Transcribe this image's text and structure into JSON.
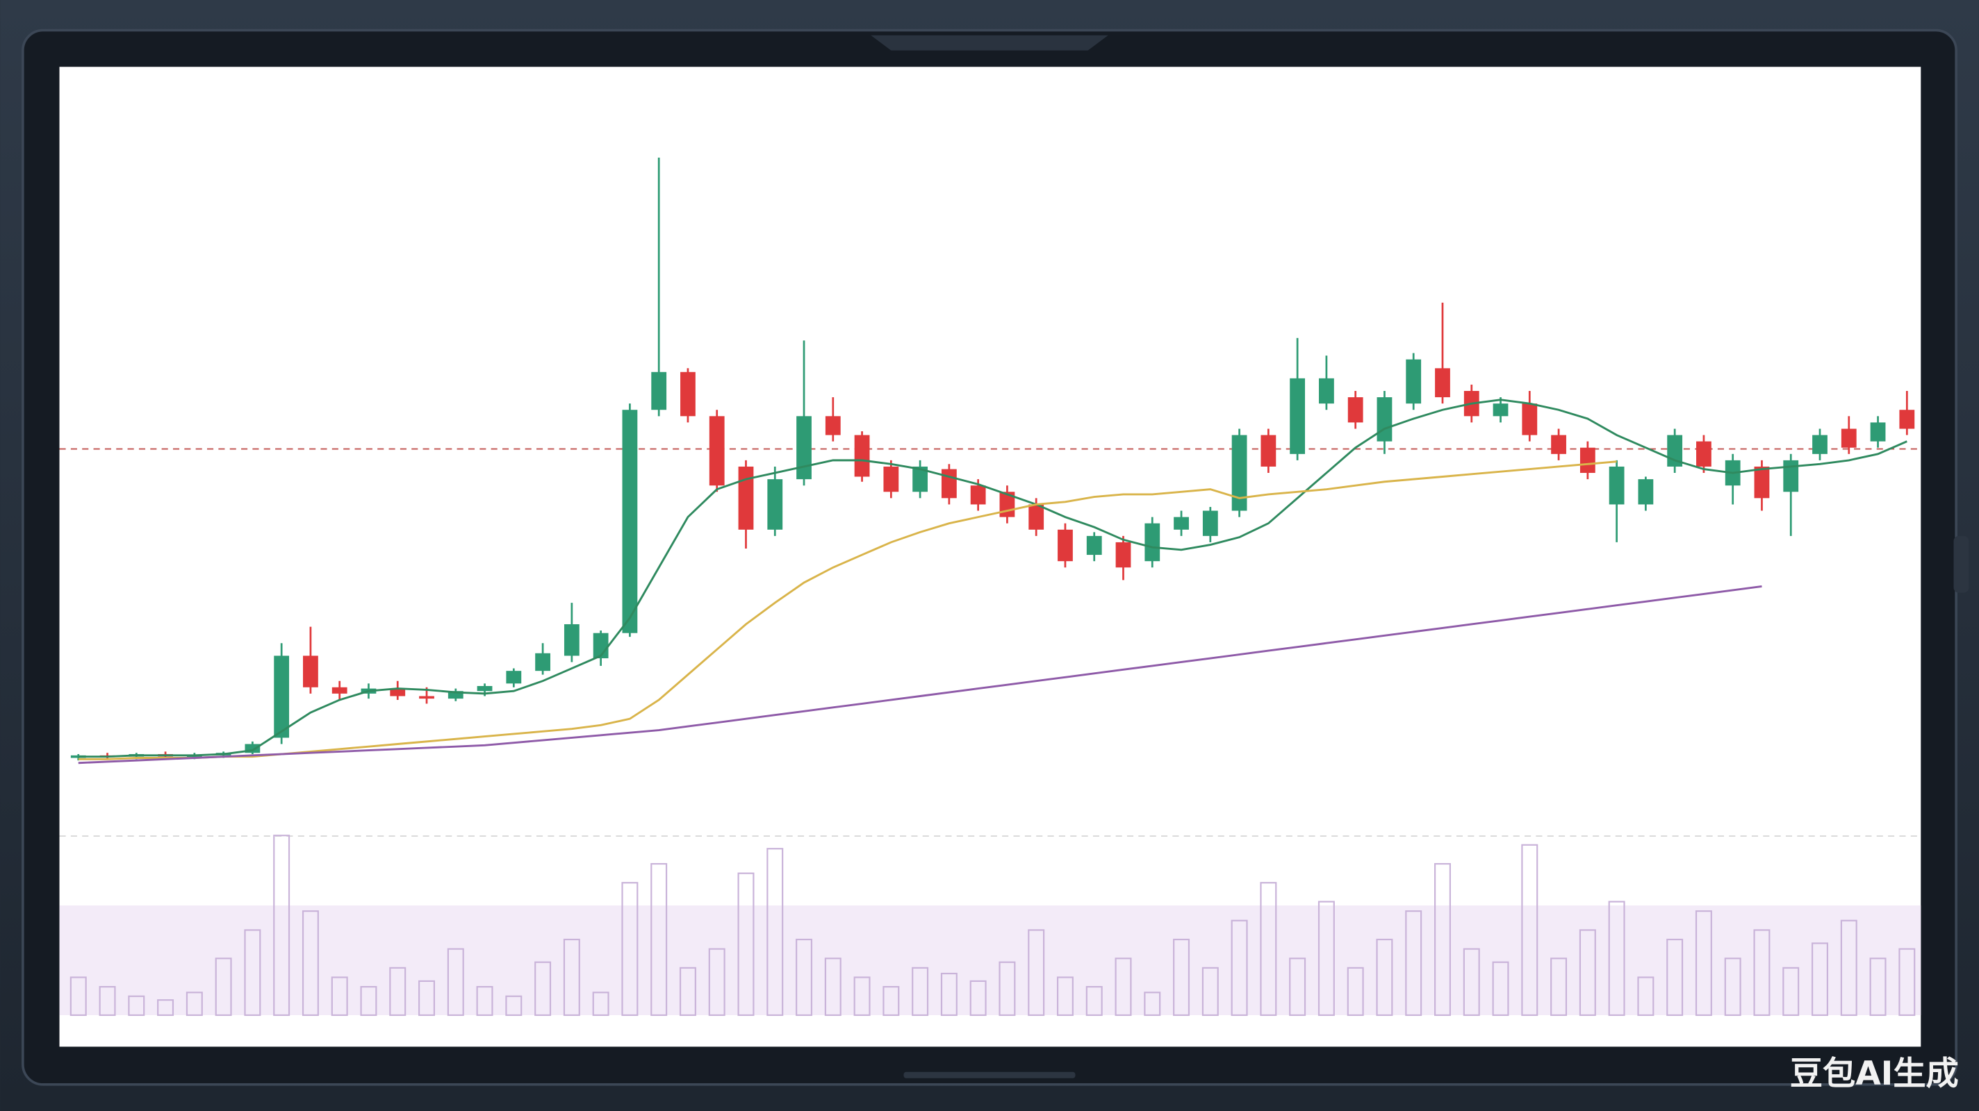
{
  "chart_data": {
    "type": "candlestick",
    "ylim": [
      0,
      600
    ],
    "up_color": "#2e9b74",
    "down_color": "#e0393b",
    "open": [
      49,
      51,
      50,
      52,
      50,
      51,
      53,
      65,
      130,
      105,
      100,
      104,
      98,
      96,
      102,
      108,
      118,
      130,
      128,
      148,
      325,
      355,
      320,
      280,
      230,
      270,
      320,
      305,
      280,
      260,
      278,
      265,
      260,
      250,
      230,
      210,
      220,
      205,
      230,
      225,
      245,
      305,
      290,
      330,
      335,
      300,
      330,
      358,
      340,
      320,
      330,
      305,
      295,
      250,
      250,
      280,
      300,
      265,
      280,
      260,
      290,
      310,
      300,
      325
    ],
    "high": [
      52,
      53,
      53,
      54,
      53,
      54,
      62,
      140,
      153,
      110,
      108,
      110,
      105,
      104,
      108,
      120,
      140,
      172,
      150,
      330,
      525,
      358,
      325,
      285,
      280,
      380,
      335,
      308,
      285,
      285,
      282,
      270,
      265,
      255,
      235,
      228,
      225,
      240,
      245,
      248,
      310,
      310,
      382,
      368,
      340,
      340,
      370,
      410,
      345,
      335,
      340,
      310,
      300,
      285,
      272,
      310,
      305,
      290,
      285,
      290,
      310,
      320,
      320,
      340
    ],
    "low": [
      47,
      48,
      48,
      49,
      48,
      49,
      52,
      60,
      100,
      95,
      96,
      95,
      92,
      94,
      98,
      105,
      115,
      125,
      122,
      145,
      320,
      315,
      260,
      215,
      225,
      265,
      300,
      268,
      255,
      255,
      250,
      245,
      235,
      225,
      200,
      205,
      190,
      200,
      225,
      220,
      240,
      275,
      285,
      325,
      310,
      290,
      325,
      330,
      315,
      315,
      300,
      285,
      270,
      220,
      245,
      275,
      275,
      250,
      245,
      225,
      285,
      290,
      295,
      305
    ],
    "close": [
      51,
      50,
      52,
      50,
      51,
      53,
      60,
      130,
      105,
      100,
      104,
      98,
      96,
      102,
      106,
      118,
      132,
      155,
      148,
      325,
      355,
      320,
      265,
      230,
      270,
      320,
      305,
      272,
      260,
      280,
      255,
      250,
      240,
      230,
      205,
      225,
      200,
      235,
      240,
      245,
      305,
      280,
      350,
      350,
      315,
      335,
      365,
      335,
      320,
      330,
      305,
      290,
      275,
      280,
      270,
      305,
      280,
      285,
      255,
      285,
      305,
      295,
      315,
      310
    ],
    "moving_averages": [
      {
        "color": "#2f8a5f",
        "values": [
          50,
          50,
          51,
          51,
          51,
          52,
          55,
          70,
          85,
          95,
          102,
          104,
          103,
          101,
          100,
          102,
          110,
          120,
          130,
          160,
          200,
          240,
          262,
          270,
          275,
          280,
          285,
          285,
          282,
          278,
          272,
          266,
          258,
          250,
          240,
          232,
          222,
          216,
          214,
          218,
          224,
          235,
          255,
          275,
          295,
          310,
          318,
          325,
          330,
          333,
          330,
          325,
          318,
          305,
          295,
          285,
          278,
          275,
          278,
          280,
          282,
          285,
          290,
          300
        ]
      },
      {
        "color": "#d9b44a",
        "values": [
          48,
          48,
          49,
          49,
          49,
          50,
          50,
          52,
          54,
          56,
          58,
          60,
          62,
          64,
          66,
          68,
          70,
          72,
          75,
          80,
          95,
          115,
          135,
          155,
          172,
          188,
          200,
          210,
          220,
          228,
          235,
          240,
          245,
          250,
          252,
          256,
          258,
          258,
          260,
          262,
          255,
          258,
          260,
          262,
          265,
          268,
          270,
          272,
          274,
          276,
          278,
          280,
          282,
          284,
          null,
          null,
          null,
          null,
          null,
          null,
          null,
          null,
          null,
          null
        ]
      },
      {
        "color": "#8e5aa8",
        "values": [
          45,
          46,
          47,
          48,
          49,
          50,
          51,
          52,
          53,
          54,
          55,
          56,
          57,
          58,
          59,
          61,
          63,
          65,
          67,
          69,
          71,
          74,
          77,
          80,
          83,
          86,
          89,
          92,
          95,
          98,
          101,
          104,
          107,
          110,
          113,
          116,
          119,
          122,
          125,
          128,
          131,
          134,
          137,
          140,
          143,
          146,
          149,
          152,
          155,
          158,
          161,
          164,
          167,
          170,
          173,
          176,
          179,
          182,
          185,
          null,
          null,
          null,
          null,
          null
        ]
      }
    ],
    "reference_line": {
      "value": 294,
      "color": "#c0504d"
    },
    "volume": {
      "ylim": [
        0,
        100
      ],
      "color": "#c9b3d9",
      "values": [
        20,
        15,
        10,
        8,
        12,
        30,
        45,
        95,
        55,
        20,
        15,
        25,
        18,
        35,
        15,
        10,
        28,
        40,
        12,
        70,
        80,
        25,
        35,
        75,
        88,
        40,
        30,
        20,
        15,
        25,
        22,
        18,
        28,
        45,
        20,
        15,
        30,
        12,
        40,
        25,
        50,
        70,
        30,
        60,
        25,
        40,
        55,
        80,
        35,
        28,
        90,
        30,
        45,
        60,
        20,
        40,
        55,
        30,
        45,
        25,
        38,
        50,
        30,
        35
      ]
    }
  },
  "watermark": "豆包AI生成"
}
